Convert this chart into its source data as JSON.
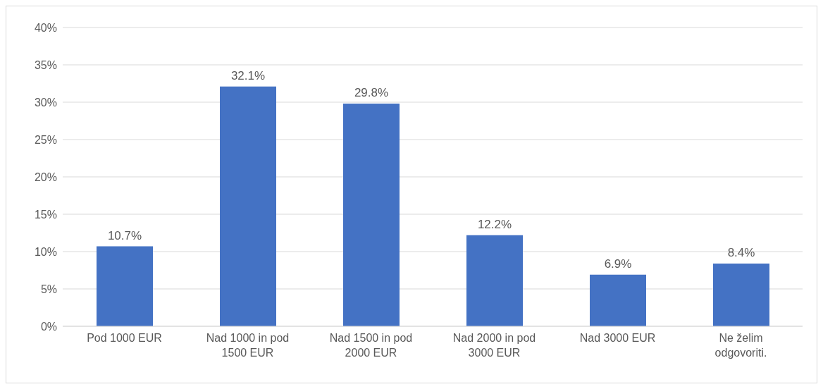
{
  "chart_data": {
    "type": "bar",
    "categories": [
      "Pod 1000 EUR",
      "Nad 1000 in pod 1500 EUR",
      "Nad 1500 in pod 2000 EUR",
      "Nad 2000 in pod 3000 EUR",
      "Nad 3000 EUR",
      "Ne želim odgovoriti."
    ],
    "values": [
      10.7,
      32.1,
      29.8,
      12.2,
      6.9,
      8.4
    ],
    "value_labels": [
      "10.7%",
      "32.1%",
      "29.8%",
      "12.2%",
      "6.9%",
      "8.4%"
    ],
    "color": "#4472c4",
    "ylim": [
      0,
      40
    ],
    "yticks": [
      {
        "value": 0,
        "label": "0%"
      },
      {
        "value": 5,
        "label": "5%"
      },
      {
        "value": 10,
        "label": "10%"
      },
      {
        "value": 15,
        "label": "15%"
      },
      {
        "value": 20,
        "label": "20%"
      },
      {
        "value": 25,
        "label": "25%"
      },
      {
        "value": 30,
        "label": "30%"
      },
      {
        "value": 35,
        "label": "35%"
      },
      {
        "value": 40,
        "label": "40%"
      }
    ],
    "grid": "y"
  }
}
